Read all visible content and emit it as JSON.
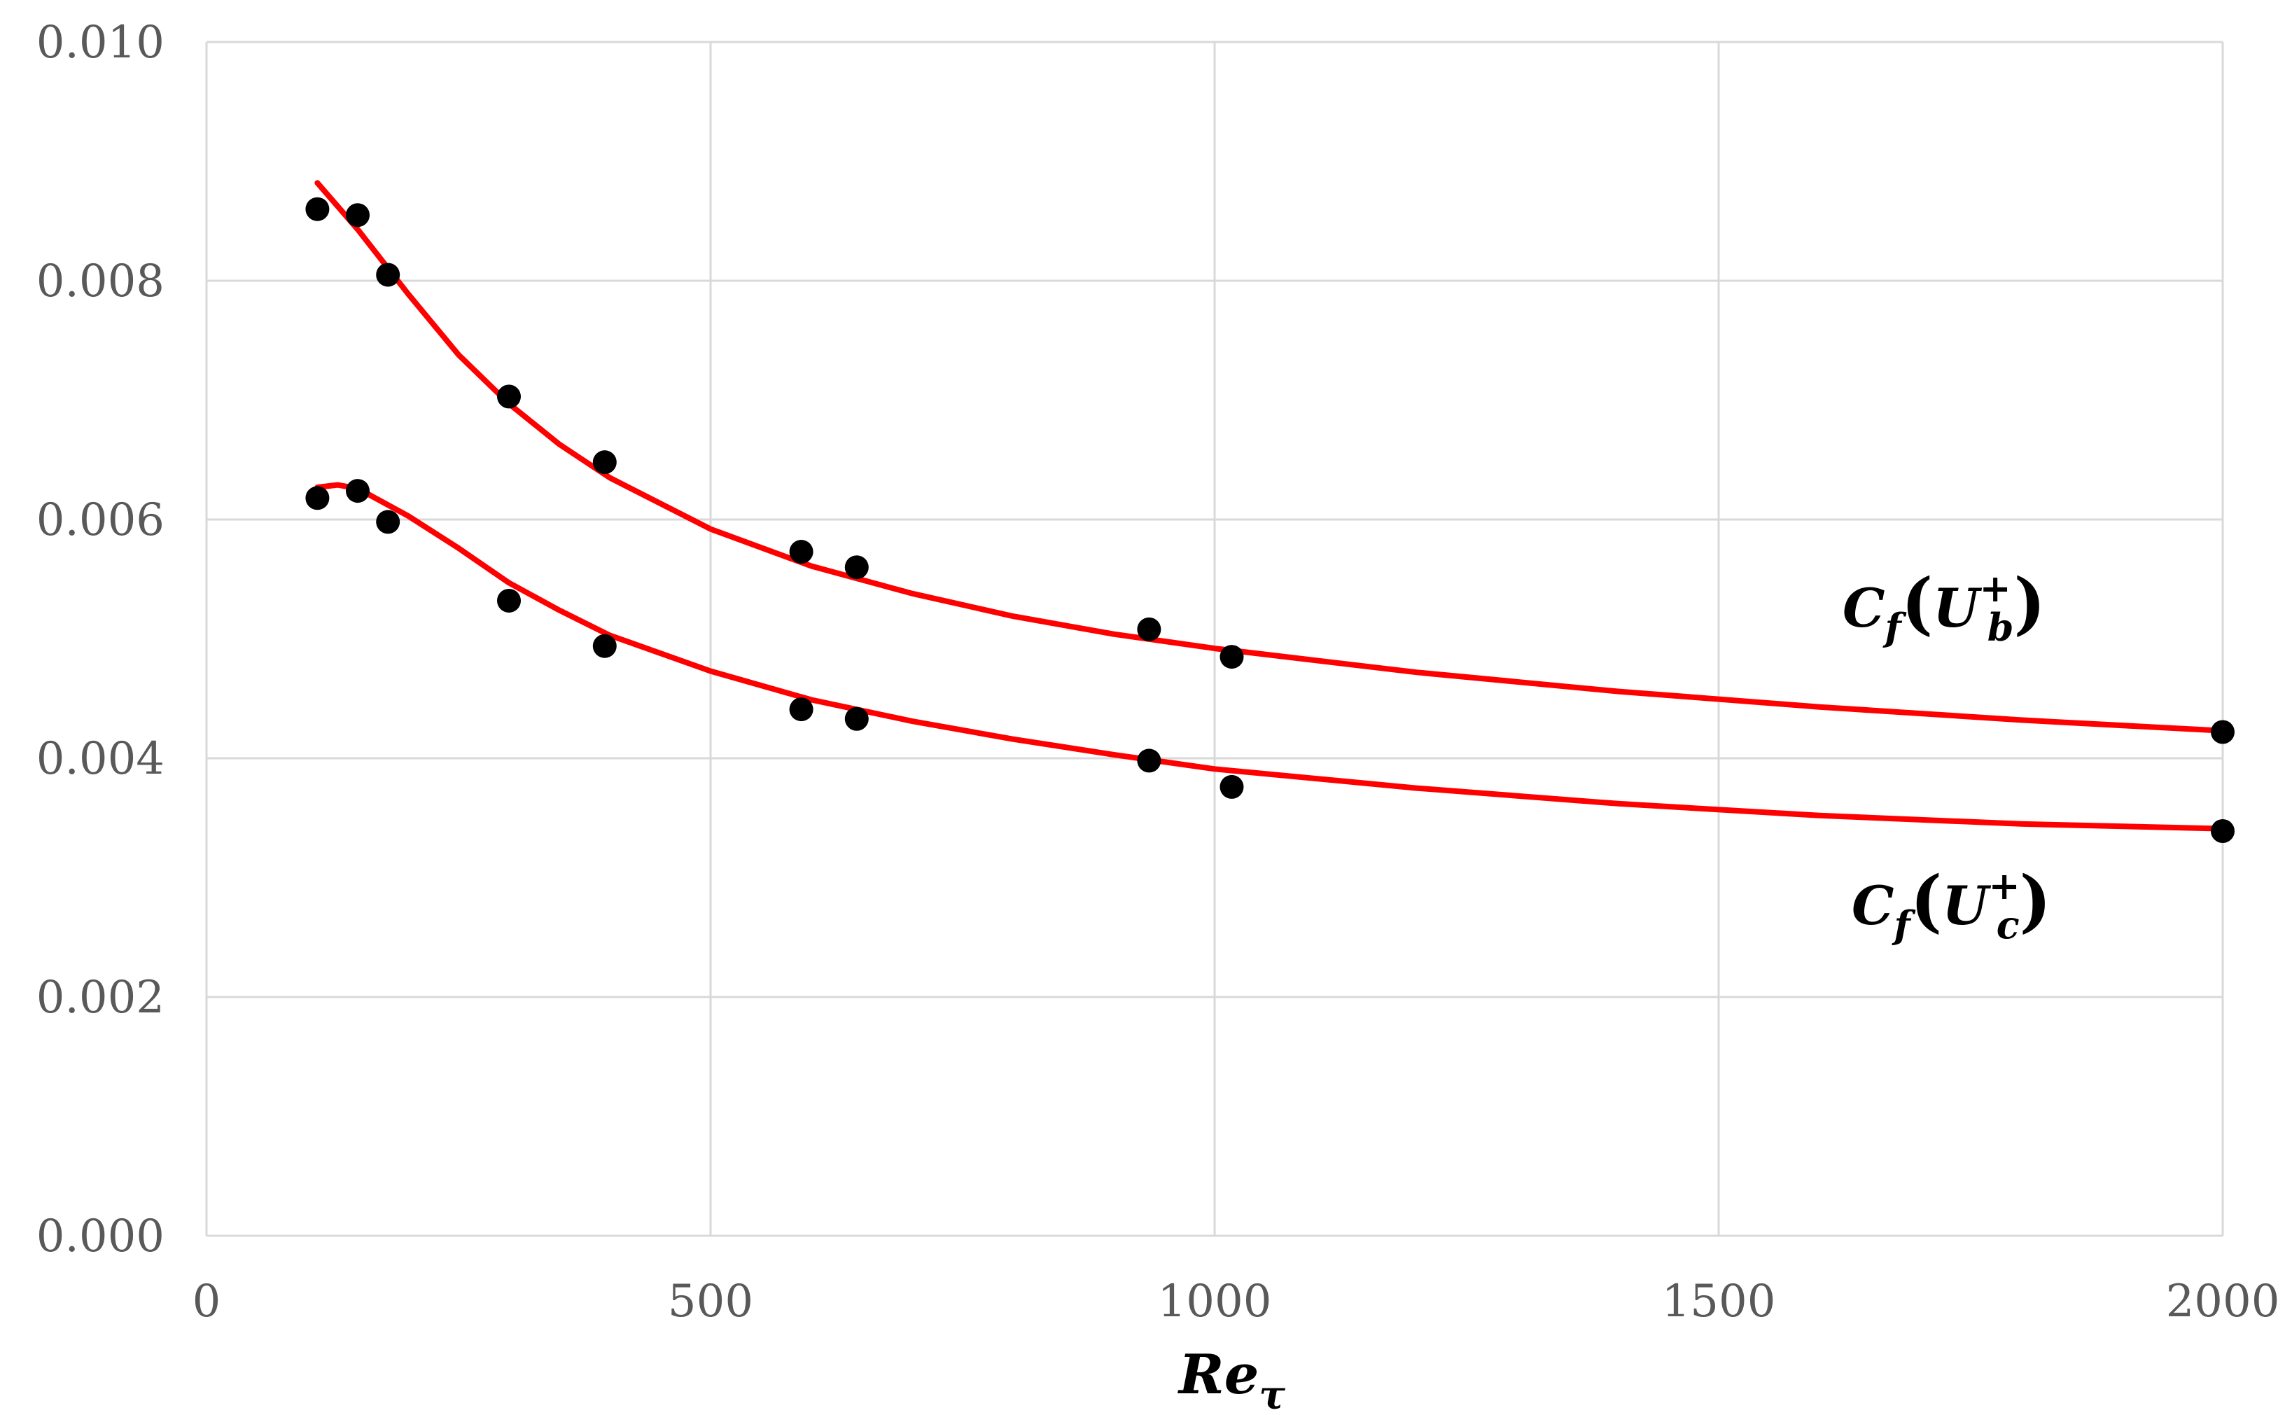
{
  "chart_data": {
    "type": "scatter",
    "xlabel": "Re",
    "xlabel_subscript": "τ",
    "ylabel": "",
    "xlim": [
      0,
      2000
    ],
    "ylim": [
      0,
      0.01
    ],
    "x_ticks": [
      0,
      500,
      1000,
      1500,
      2000
    ],
    "x_tick_labels": [
      "0",
      "500",
      "1000",
      "1500",
      "2000"
    ],
    "y_ticks": [
      0,
      0.002,
      0.004,
      0.006,
      0.008,
      0.01
    ],
    "y_tick_labels": [
      "0.000",
      "0.002",
      "0.004",
      "0.006",
      "0.008",
      "0.010"
    ],
    "grid": true,
    "marker_color": "#000000",
    "curve_color": "#ff0000",
    "gridline_color": "#d9d9d9",
    "series": [
      {
        "name": "Cf(Ub+)",
        "points": [
          {
            "x": 110,
            "y": 0.0086
          },
          {
            "x": 150,
            "y": 0.00855
          },
          {
            "x": 180,
            "y": 0.00805
          },
          {
            "x": 300,
            "y": 0.00703
          },
          {
            "x": 395,
            "y": 0.00648
          },
          {
            "x": 590,
            "y": 0.00573
          },
          {
            "x": 645,
            "y": 0.0056
          },
          {
            "x": 935,
            "y": 0.00508
          },
          {
            "x": 1017,
            "y": 0.00485
          },
          {
            "x": 2000,
            "y": 0.00422
          }
        ],
        "fit": [
          {
            "x": 110,
            "y": 0.00882
          },
          {
            "x": 150,
            "y": 0.00843
          },
          {
            "x": 200,
            "y": 0.00789
          },
          {
            "x": 250,
            "y": 0.00738
          },
          {
            "x": 300,
            "y": 0.00697
          },
          {
            "x": 350,
            "y": 0.00663
          },
          {
            "x": 400,
            "y": 0.00635
          },
          {
            "x": 500,
            "y": 0.00592
          },
          {
            "x": 600,
            "y": 0.00561
          },
          {
            "x": 700,
            "y": 0.00538
          },
          {
            "x": 800,
            "y": 0.00519
          },
          {
            "x": 900,
            "y": 0.00504
          },
          {
            "x": 1000,
            "y": 0.00492
          },
          {
            "x": 1200,
            "y": 0.00472
          },
          {
            "x": 1400,
            "y": 0.00456
          },
          {
            "x": 1600,
            "y": 0.00443
          },
          {
            "x": 1800,
            "y": 0.00432
          },
          {
            "x": 2000,
            "y": 0.00423
          }
        ]
      },
      {
        "name": "Cf(Uc+)",
        "points": [
          {
            "x": 110,
            "y": 0.00618
          },
          {
            "x": 150,
            "y": 0.00624
          },
          {
            "x": 180,
            "y": 0.00598
          },
          {
            "x": 300,
            "y": 0.00532
          },
          {
            "x": 395,
            "y": 0.00494
          },
          {
            "x": 590,
            "y": 0.00441
          },
          {
            "x": 645,
            "y": 0.00433
          },
          {
            "x": 935,
            "y": 0.00398
          },
          {
            "x": 1017,
            "y": 0.00376
          },
          {
            "x": 2000,
            "y": 0.00339
          }
        ],
        "fit": [
          {
            "x": 110,
            "y": 0.00627
          },
          {
            "x": 130,
            "y": 0.00629
          },
          {
            "x": 150,
            "y": 0.00626
          },
          {
            "x": 200,
            "y": 0.00603
          },
          {
            "x": 250,
            "y": 0.00576
          },
          {
            "x": 300,
            "y": 0.00547
          },
          {
            "x": 350,
            "y": 0.00524
          },
          {
            "x": 400,
            "y": 0.00503
          },
          {
            "x": 500,
            "y": 0.00473
          },
          {
            "x": 600,
            "y": 0.00449
          },
          {
            "x": 700,
            "y": 0.00431
          },
          {
            "x": 800,
            "y": 0.00416
          },
          {
            "x": 900,
            "y": 0.00403
          },
          {
            "x": 1000,
            "y": 0.00391
          },
          {
            "x": 1200,
            "y": 0.00375
          },
          {
            "x": 1400,
            "y": 0.00362
          },
          {
            "x": 1600,
            "y": 0.00352
          },
          {
            "x": 1800,
            "y": 0.00345
          },
          {
            "x": 2000,
            "y": 0.00341
          }
        ]
      }
    ],
    "annotations": [
      {
        "base": "C",
        "sub": "f",
        "open": "(",
        "var": "U",
        "sup": "+",
        "varsub": "b",
        "close": ")"
      },
      {
        "base": "C",
        "sub": "f",
        "open": "(",
        "var": "U",
        "sup": "+",
        "varsub": "c",
        "close": ")"
      }
    ]
  }
}
